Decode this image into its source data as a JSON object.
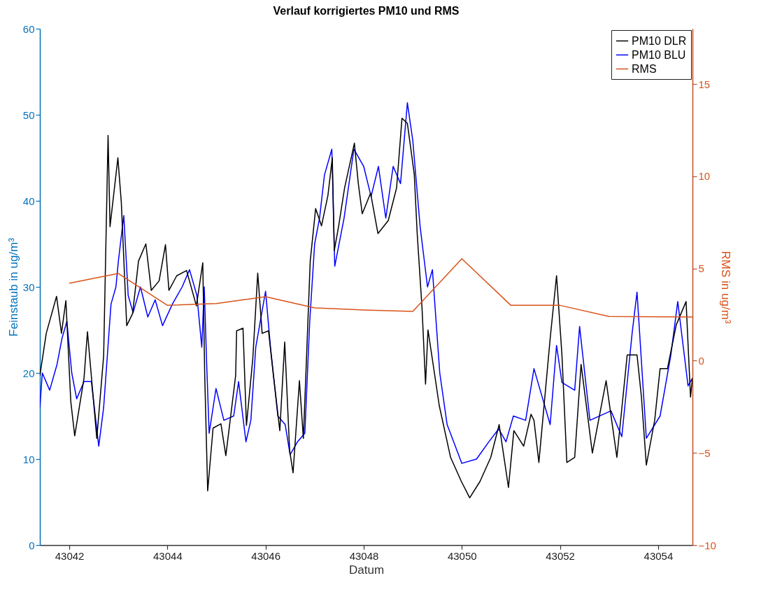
{
  "chart_data": {
    "type": "line",
    "title": "Verlauf korrigiertes PM10 und RMS",
    "xlabel": "Datum",
    "ylabel": "Feinstaub in ug/m³",
    "y2label": "RMS in ug/m³",
    "xlim": [
      43041.4,
      43054.7
    ],
    "xticks": [
      43042,
      43044,
      43046,
      43048,
      43050,
      43052,
      43054
    ],
    "ylim": [
      0,
      60
    ],
    "yticks": [
      0,
      10,
      20,
      30,
      40,
      50,
      60
    ],
    "y2lim": [
      -10,
      18
    ],
    "y2ticks": [
      -10,
      -5,
      0,
      5,
      10,
      15
    ],
    "legend": "top right",
    "series": [
      {
        "name": "PM10 DLR",
        "color": "#000000",
        "x": [
          43041.4,
          43041.53,
          43041.74,
          43041.84,
          43041.93,
          43042.03,
          43042.11,
          43042.3,
          43042.37,
          43042.56,
          43042.7,
          43042.79,
          43042.83,
          43042.99,
          43043.06,
          43043.17,
          43043.29,
          43043.41,
          43043.56,
          43043.67,
          43043.83,
          43043.96,
          43044.03,
          43044.19,
          43044.39,
          43044.59,
          43044.72,
          43044.76,
          43044.82,
          43044.93,
          43045.09,
          43045.19,
          43045.39,
          43045.41,
          43045.54,
          43045.61,
          43045.74,
          43045.84,
          43045.93,
          43046.06,
          43046.16,
          43046.29,
          43046.39,
          43046.49,
          43046.56,
          43046.69,
          43046.77,
          43046.84,
          43046.91,
          43047.02,
          43047.14,
          43047.27,
          43047.36,
          43047.4,
          43047.49,
          43047.61,
          43047.81,
          43047.89,
          43047.97,
          43048.14,
          43048.29,
          43048.5,
          43048.67,
          43048.78,
          43048.89,
          43049.03,
          43049.09,
          43049.19,
          43049.26,
          43049.31,
          43049.54,
          43049.77,
          43049.99,
          43050.16,
          43050.37,
          43050.59,
          43050.76,
          43050.95,
          43051.06,
          43051.26,
          43051.41,
          43051.47,
          43051.57,
          43051.8,
          43051.93,
          43052.04,
          43052.14,
          43052.3,
          43052.43,
          43052.66,
          43052.94,
          43053.16,
          43053.37,
          43053.57,
          43053.66,
          43053.76,
          43053.93,
          43054.04,
          43054.19,
          43054.37,
          43054.57,
          43054.66,
          43054.7
        ],
        "values": [
          19.7,
          24.6,
          28.9,
          24.6,
          28.4,
          16.7,
          12.7,
          19.4,
          24.8,
          12.4,
          22,
          47.6,
          37,
          45,
          39.8,
          25.5,
          26.9,
          33,
          35,
          29.6,
          30.7,
          34.9,
          29.6,
          31.3,
          31.9,
          27.8,
          32.8,
          19.7,
          6.3,
          13.6,
          14.1,
          10.4,
          19.7,
          24.9,
          25.2,
          13.9,
          21.7,
          31.6,
          24.6,
          24.9,
          19.7,
          13.3,
          23.6,
          11,
          8.4,
          19.1,
          12.4,
          22.6,
          33,
          39.1,
          37.1,
          40.6,
          45,
          34.2,
          37.1,
          41.5,
          46.7,
          42,
          38.5,
          40.9,
          36.2,
          37.7,
          41.5,
          49.6,
          49,
          43.1,
          36.2,
          27.4,
          18.7,
          25,
          16.2,
          10.2,
          7.4,
          5.5,
          7.4,
          10.2,
          14,
          6.7,
          13.3,
          11.5,
          15.2,
          14.5,
          9.6,
          24,
          31.3,
          22.1,
          9.6,
          10.2,
          21,
          10.7,
          19.1,
          10.2,
          22.1,
          22.1,
          17.2,
          9.3,
          14.5,
          20.5,
          20.5,
          25.6,
          28.3,
          17.2,
          19.4
        ]
      },
      {
        "name": "PM10 BLU",
        "color": "#0000ff",
        "x": [
          43041.4,
          43041.45,
          43041.6,
          43041.75,
          43041.85,
          43041.95,
          43042.05,
          43042.15,
          43042.3,
          43042.45,
          43042.6,
          43042.7,
          43042.8,
          43042.85,
          43042.95,
          43043.0,
          43043.11,
          43043.2,
          43043.3,
          43043.45,
          43043.6,
          43043.75,
          43043.9,
          43044.1,
          43044.3,
          43044.45,
          43044.6,
          43044.7,
          43044.75,
          43044.8,
          43044.85,
          43044.99,
          43045.15,
          43045.35,
          43045.45,
          43045.6,
          43045.7,
          43045.8,
          43046.0,
          43046.1,
          43046.25,
          43046.4,
          43046.5,
          43046.65,
          43046.8,
          43046.9,
          43047.0,
          43047.1,
          43047.2,
          43047.35,
          43047.41,
          43047.6,
          43047.8,
          43048.0,
          43048.15,
          43048.3,
          43048.45,
          43048.6,
          43048.75,
          43048.89,
          43049.0,
          43049.15,
          43049.3,
          43049.4,
          43049.55,
          43049.7,
          43049.9,
          43050.0,
          43050.3,
          43050.55,
          43050.75,
          43050.9,
          43051.05,
          43051.3,
          43051.47,
          43051.8,
          43051.93,
          43052.04,
          43052.3,
          43052.4,
          43052.61,
          43053.04,
          43053.26,
          43053.47,
          43053.57,
          43053.76,
          43054.04,
          43054.26,
          43054.4,
          43054.61,
          43054.7
        ],
        "values": [
          16,
          20,
          18,
          21,
          24,
          26,
          20,
          17,
          19,
          19,
          11.5,
          16,
          24,
          28,
          30,
          33,
          38.3,
          29,
          27,
          30,
          26.5,
          28.5,
          25.5,
          28,
          30,
          32,
          29,
          23,
          30,
          21,
          13,
          18.2,
          14.5,
          15,
          19,
          12,
          14.5,
          23,
          29.5,
          23,
          15,
          14,
          10.5,
          12,
          13,
          26,
          35,
          38,
          43,
          46,
          32.4,
          38,
          46,
          44,
          40.5,
          44,
          38,
          44,
          42,
          51.4,
          47,
          37,
          30,
          32,
          20,
          14,
          11,
          9.5,
          10,
          12,
          13.5,
          12,
          15,
          14.5,
          20.5,
          14,
          23.2,
          18.9,
          18,
          25.4,
          14.5,
          15.6,
          12.6,
          24.6,
          29.4,
          12.4,
          15,
          22.1,
          28.3,
          18.5,
          19.4
        ]
      },
      {
        "name": "RMS",
        "color": "#d95319",
        "axis": "y2",
        "x": [
          43042,
          43043,
          43044,
          43045,
          43046,
          43047,
          43048,
          43049,
          43050,
          43051,
          43052,
          43053,
          43054.7
        ],
        "values": [
          4.2,
          4.73,
          3.0,
          3.1,
          3.47,
          2.86,
          2.75,
          2.67,
          5.53,
          3.0,
          3.0,
          2.4,
          2.37
        ]
      }
    ]
  }
}
